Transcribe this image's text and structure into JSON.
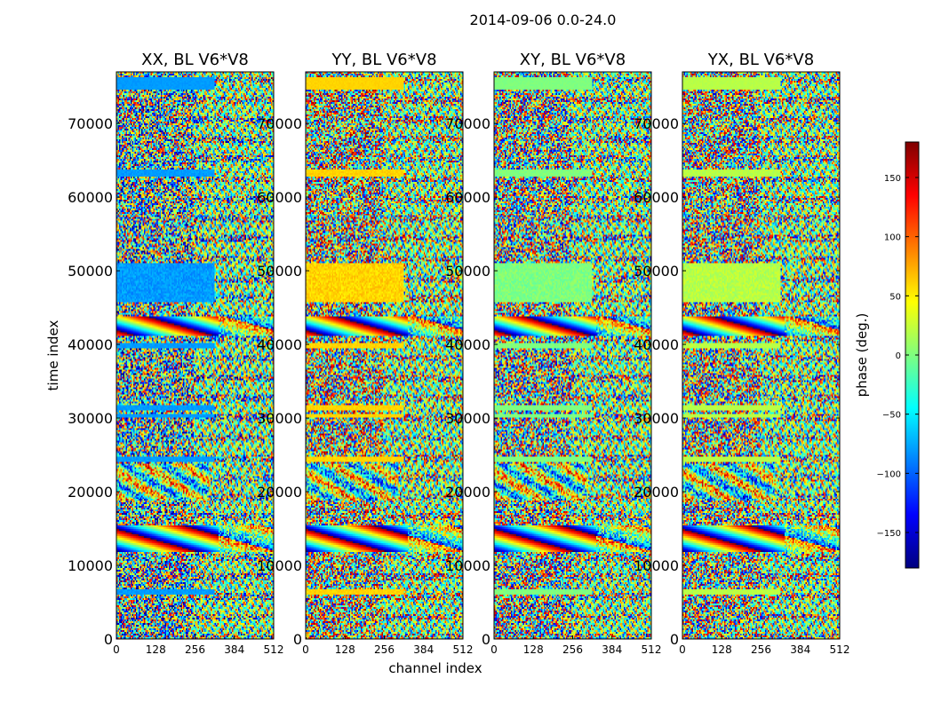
{
  "figure": {
    "suptitle": "2014-09-06 0.0-24.0"
  },
  "colormap": {
    "name": "jet",
    "stops": [
      "#00007f",
      "#0000ff",
      "#007fff",
      "#00ffff",
      "#7fff7f",
      "#ffff00",
      "#ff7f00",
      "#ff0000",
      "#7f0000"
    ]
  },
  "chart_data": [
    {
      "type": "heatmap",
      "title": "XX, BL V6*V8",
      "xlabel": "",
      "ylabel": "time index",
      "xlim": [
        0,
        512
      ],
      "ylim": [
        0,
        77000
      ],
      "x_ticks": [
        0,
        128,
        256,
        384,
        512
      ],
      "y_ticks": [
        0,
        10000,
        20000,
        30000,
        40000,
        50000,
        60000,
        70000
      ],
      "z_label": "phase (deg.)",
      "z_range": [
        -180,
        180
      ],
      "bias": -80
    },
    {
      "type": "heatmap",
      "title": "YY, BL V6*V8",
      "xlabel": "channel index",
      "ylabel": "",
      "xlim": [
        0,
        512
      ],
      "ylim": [
        0,
        77000
      ],
      "x_ticks": [
        0,
        128,
        256,
        384,
        512
      ],
      "y_ticks": [
        0,
        10000,
        20000,
        30000,
        40000,
        50000,
        60000,
        70000
      ],
      "z_label": "phase (deg.)",
      "z_range": [
        -180,
        180
      ],
      "bias": 60
    },
    {
      "type": "heatmap",
      "title": "XY, BL V6*V8",
      "xlabel": "",
      "ylabel": "",
      "xlim": [
        0,
        512
      ],
      "ylim": [
        0,
        77000
      ],
      "x_ticks": [
        0,
        128,
        256,
        384,
        512
      ],
      "y_ticks": [
        0,
        10000,
        20000,
        30000,
        40000,
        50000,
        60000,
        70000
      ],
      "z_label": "phase (deg.)",
      "z_range": [
        -180,
        180
      ],
      "bias": 0
    },
    {
      "type": "heatmap",
      "title": "YX, BL V6*V8",
      "xlabel": "",
      "ylabel": "",
      "xlim": [
        0,
        512
      ],
      "ylim": [
        0,
        77000
      ],
      "x_ticks": [
        0,
        128,
        256,
        384,
        512
      ],
      "y_ticks": [
        0,
        10000,
        20000,
        30000,
        40000,
        50000,
        60000,
        70000
      ],
      "z_label": "phase (deg.)",
      "z_range": [
        -180,
        180
      ],
      "bias": 20
    }
  ],
  "colorbar": {
    "label": "phase (deg.)",
    "range": [
      -180,
      180
    ],
    "ticks": [
      150,
      100,
      50,
      0,
      -50,
      -100,
      -150
    ],
    "tick_labels": [
      "150",
      "100",
      "50",
      "0",
      "−50",
      "−100",
      "−150"
    ]
  }
}
